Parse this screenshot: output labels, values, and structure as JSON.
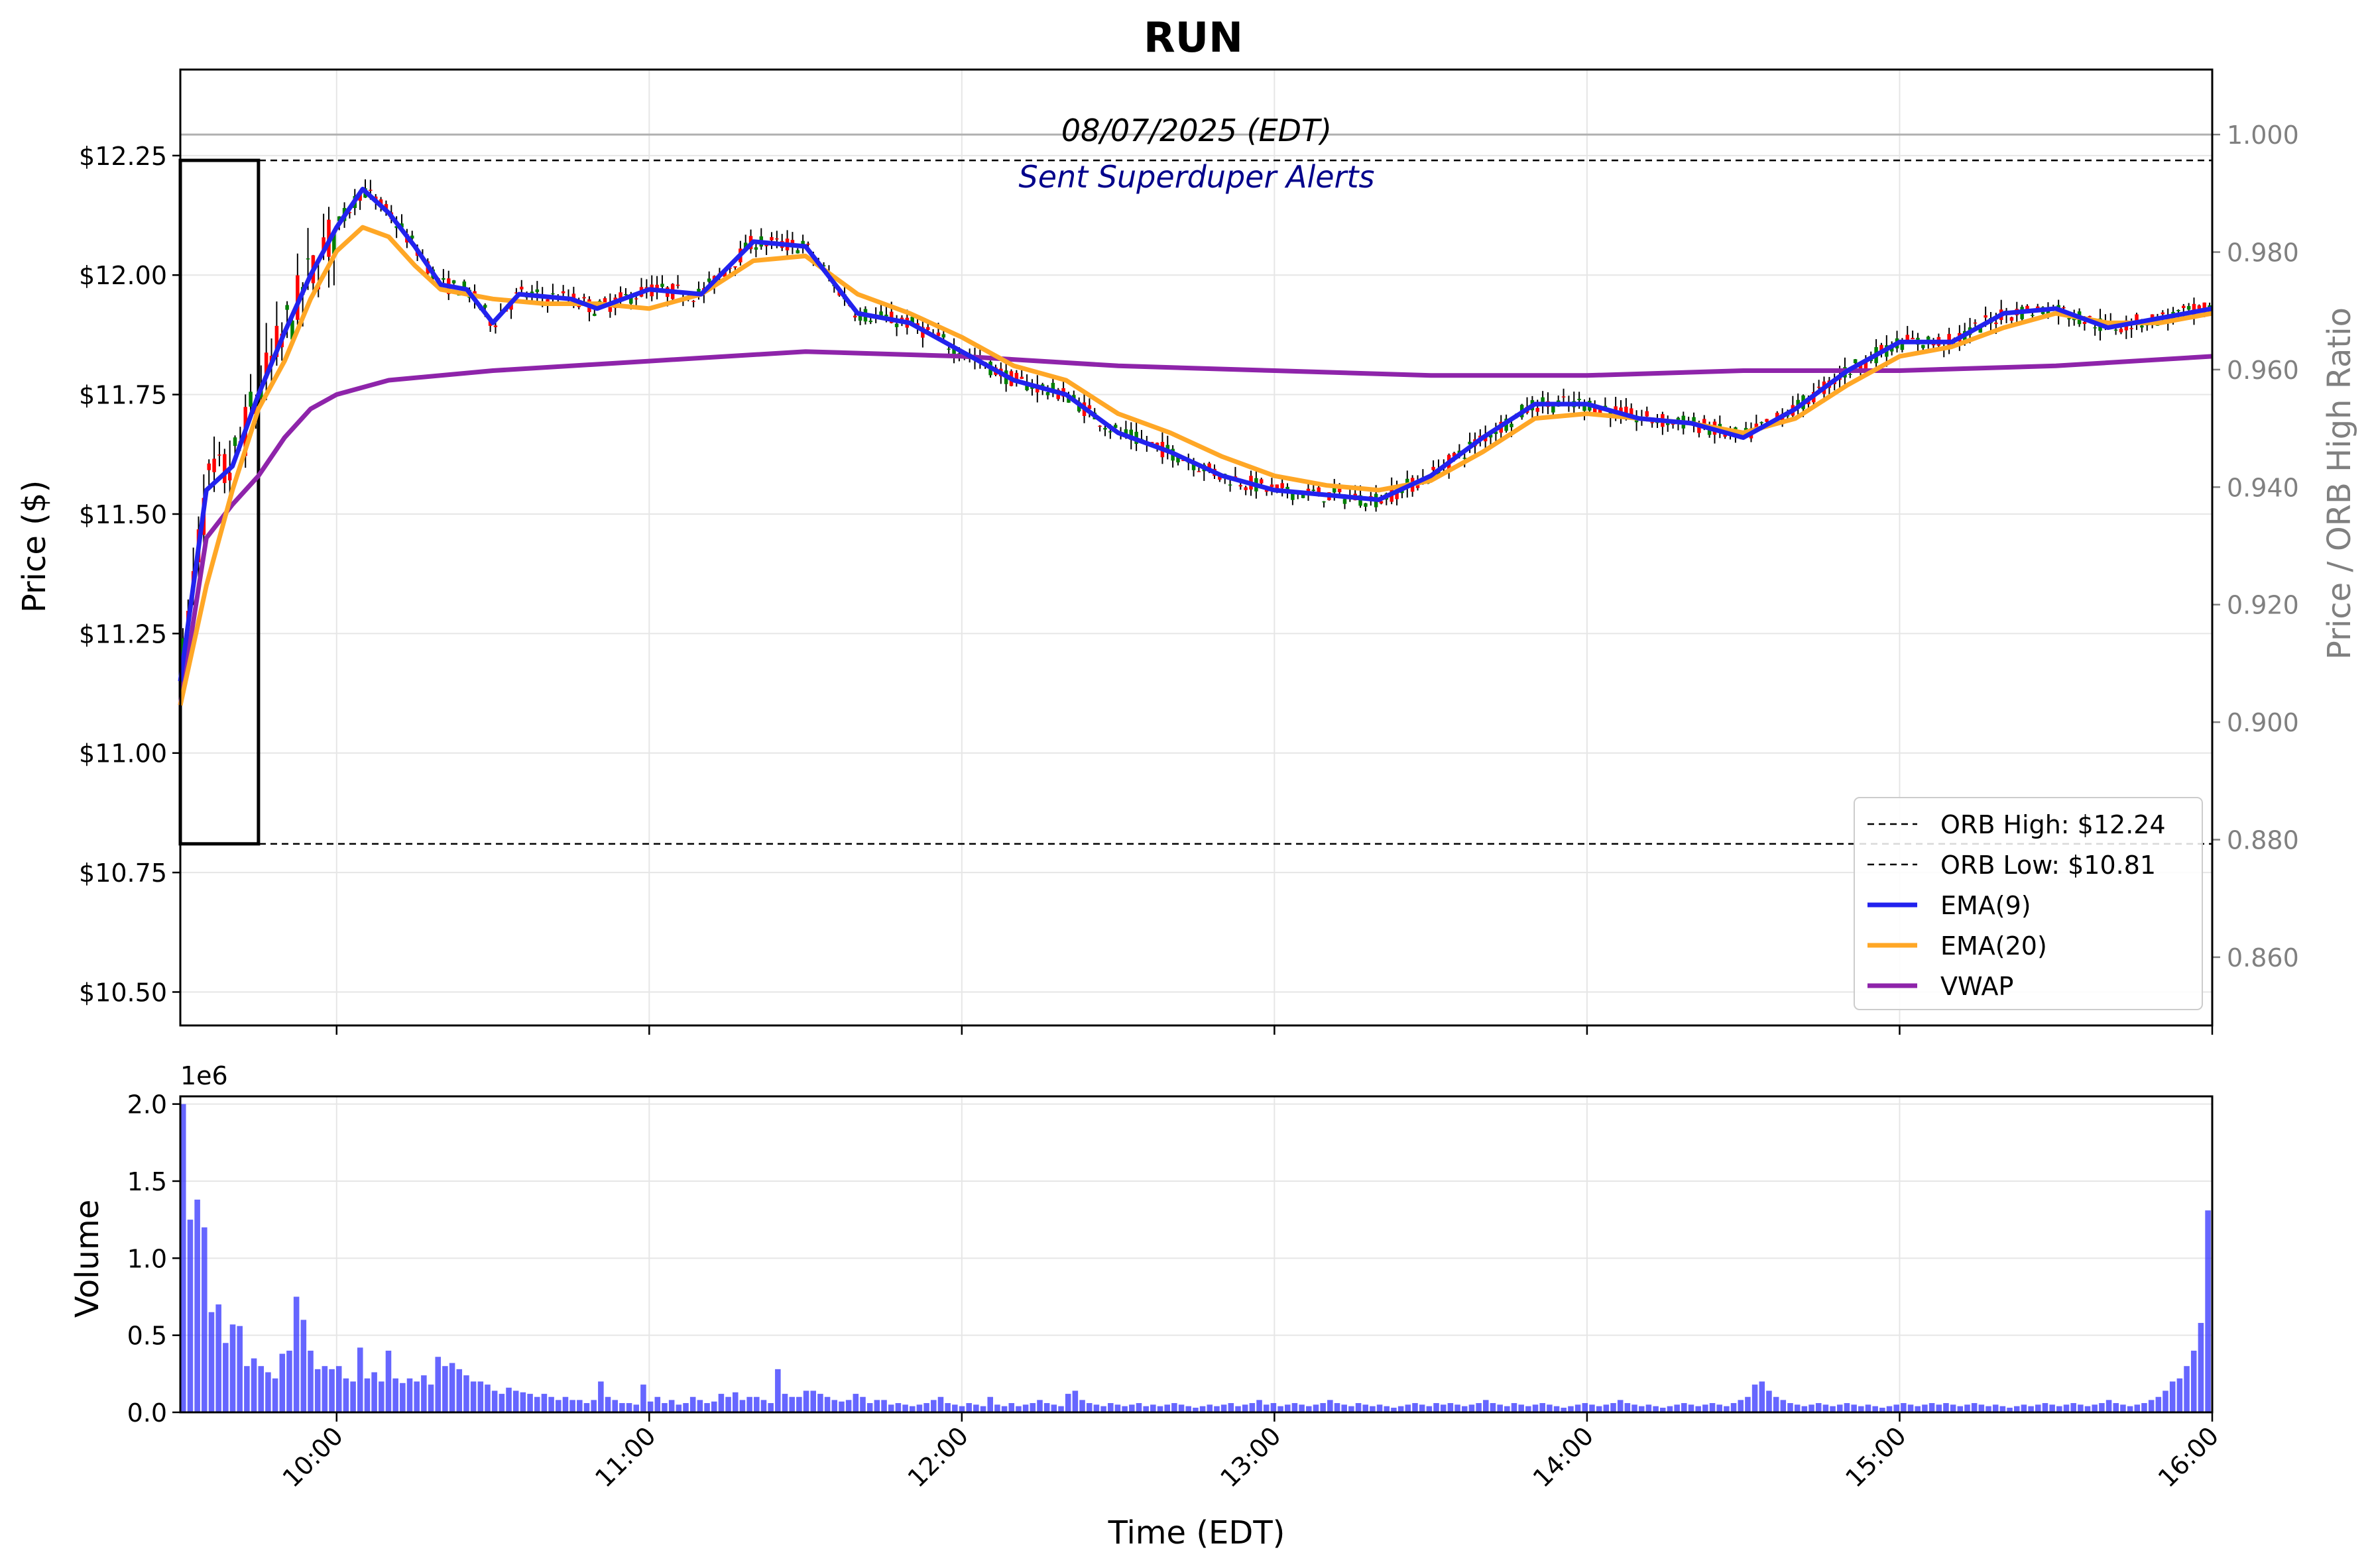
{
  "chart_data": [
    {
      "type": "candlestick",
      "title": "RUN",
      "annotation_date": "08/07/2025 (EDT)",
      "annotation_alerts": "Sent Superduper Alerts",
      "ylabel": "Price ($)",
      "y2label": "Price / ORB High Ratio",
      "ylim": [
        10.43,
        12.43
      ],
      "y_ticks": [
        "$10.50",
        "$10.75",
        "$11.00",
        "$11.25",
        "$11.50",
        "$11.75",
        "$12.00",
        "$12.25"
      ],
      "y_tick_values": [
        10.5,
        10.75,
        11.0,
        11.25,
        11.5,
        11.75,
        12.0,
        12.25
      ],
      "y2_ticks": [
        "0.860",
        "0.880",
        "0.900",
        "0.920",
        "0.940",
        "0.960",
        "0.980",
        "1.000"
      ],
      "y2_tick_values": [
        0.86,
        0.88,
        0.9,
        0.92,
        0.94,
        0.96,
        0.98,
        1.0
      ],
      "x_range": [
        "09:30",
        "16:00"
      ],
      "grid": true,
      "legend_position": "lower-right",
      "legend": [
        {
          "label": "ORB High: $12.24",
          "style": "dashed",
          "color": "#000000"
        },
        {
          "label": "ORB Low: $10.81",
          "style": "dashed",
          "color": "#000000"
        },
        {
          "label": "EMA(9)",
          "style": "solid",
          "color": "#2222ee"
        },
        {
          "label": "EMA(20)",
          "style": "solid",
          "color": "#ffa726"
        },
        {
          "label": "VWAP",
          "style": "solid",
          "color": "#8e24aa"
        }
      ],
      "orb": {
        "high": 12.24,
        "low": 10.81,
        "window": [
          "09:30",
          "09:45"
        ]
      },
      "colors": {
        "up": "#008000",
        "down": "#ff0000",
        "wick": "#000000",
        "ema9": "#2222ee",
        "ema20": "#ffa726",
        "vwap": "#8e24aa",
        "volume": "#3333ff"
      },
      "series": [
        {
          "name": "EMA(9)",
          "points": [
            [
              "09:30",
              11.15
            ],
            [
              "09:35",
              11.55
            ],
            [
              "09:40",
              11.6
            ],
            [
              "09:45",
              11.75
            ],
            [
              "09:50",
              11.88
            ],
            [
              "09:55",
              12.0
            ],
            [
              "10:00",
              12.1
            ],
            [
              "10:05",
              12.18
            ],
            [
              "10:10",
              12.13
            ],
            [
              "10:15",
              12.06
            ],
            [
              "10:20",
              11.98
            ],
            [
              "10:25",
              11.97
            ],
            [
              "10:30",
              11.9
            ],
            [
              "10:35",
              11.96
            ],
            [
              "10:45",
              11.95
            ],
            [
              "10:50",
              11.93
            ],
            [
              "11:00",
              11.97
            ],
            [
              "11:10",
              11.96
            ],
            [
              "11:20",
              12.07
            ],
            [
              "11:30",
              12.06
            ],
            [
              "11:40",
              11.92
            ],
            [
              "11:50",
              11.9
            ],
            [
              "12:00",
              11.84
            ],
            [
              "12:10",
              11.78
            ],
            [
              "12:20",
              11.75
            ],
            [
              "12:30",
              11.67
            ],
            [
              "12:40",
              11.63
            ],
            [
              "12:50",
              11.58
            ],
            [
              "13:00",
              11.55
            ],
            [
              "13:10",
              11.54
            ],
            [
              "13:20",
              11.53
            ],
            [
              "13:30",
              11.58
            ],
            [
              "13:40",
              11.66
            ],
            [
              "13:50",
              11.73
            ],
            [
              "14:00",
              11.73
            ],
            [
              "14:10",
              11.7
            ],
            [
              "14:20",
              11.69
            ],
            [
              "14:30",
              11.66
            ],
            [
              "14:40",
              11.72
            ],
            [
              "14:50",
              11.8
            ],
            [
              "15:00",
              11.86
            ],
            [
              "15:10",
              11.86
            ],
            [
              "15:20",
              11.92
            ],
            [
              "15:30",
              11.93
            ],
            [
              "15:40",
              11.89
            ],
            [
              "15:50",
              11.91
            ],
            [
              "16:00",
              11.93
            ]
          ]
        },
        {
          "name": "EMA(20)",
          "points": [
            [
              "09:30",
              11.1
            ]
          ]
        },
        {
          "name": "VWAP",
          "points": [
            [
              "09:30",
              11.1
            ]
          ]
        }
      ]
    },
    {
      "type": "bar",
      "ylabel": "Volume",
      "xlabel": "Time (EDT)",
      "y_offset_label": "1e6",
      "ylim": [
        0,
        2.05
      ],
      "y_ticks": [
        "0.0",
        "0.5",
        "1.0",
        "1.5",
        "2.0"
      ],
      "y_tick_values": [
        0,
        0.5,
        1.0,
        1.5,
        2.0
      ],
      "x_ticks": [
        "10:00",
        "11:00",
        "12:00",
        "13:00",
        "14:00",
        "15:00",
        "16:00"
      ],
      "grid": true,
      "bar_color": "#3333ff",
      "values_millions": [
        2.0,
        1.25,
        1.38,
        1.2,
        0.65,
        0.7,
        0.45,
        0.57,
        0.56,
        0.3,
        0.35,
        0.3,
        0.26,
        0.22,
        0.38,
        0.4,
        0.75,
        0.6,
        0.4,
        0.28,
        0.3,
        0.28,
        0.3,
        0.22,
        0.2,
        0.42,
        0.22,
        0.26,
        0.2,
        0.4,
        0.22,
        0.19,
        0.22,
        0.2,
        0.24,
        0.18,
        0.36,
        0.3,
        0.32,
        0.28,
        0.24,
        0.2,
        0.2,
        0.18,
        0.14,
        0.12,
        0.16,
        0.14,
        0.13,
        0.12,
        0.1,
        0.12,
        0.1,
        0.08,
        0.1,
        0.08,
        0.08,
        0.06,
        0.08,
        0.2,
        0.1,
        0.08,
        0.06,
        0.06,
        0.05,
        0.18,
        0.07,
        0.1,
        0.06,
        0.08,
        0.05,
        0.06,
        0.1,
        0.08,
        0.06,
        0.07,
        0.12,
        0.1,
        0.13,
        0.08,
        0.1,
        0.1,
        0.08,
        0.06,
        0.28,
        0.12,
        0.1,
        0.1,
        0.14,
        0.14,
        0.12,
        0.1,
        0.08,
        0.07,
        0.08,
        0.12,
        0.1,
        0.06,
        0.08,
        0.08,
        0.05,
        0.06,
        0.05,
        0.04,
        0.05,
        0.06,
        0.08,
        0.1,
        0.06,
        0.05,
        0.04,
        0.06,
        0.05,
        0.04,
        0.1,
        0.05,
        0.04,
        0.06,
        0.04,
        0.05,
        0.06,
        0.08,
        0.06,
        0.05,
        0.04,
        0.12,
        0.14,
        0.08,
        0.06,
        0.05,
        0.04,
        0.06,
        0.05,
        0.04,
        0.05,
        0.06,
        0.04,
        0.05,
        0.04,
        0.05,
        0.06,
        0.05,
        0.04,
        0.03,
        0.04,
        0.05,
        0.04,
        0.05,
        0.06,
        0.04,
        0.05,
        0.06,
        0.08,
        0.05,
        0.06,
        0.04,
        0.05,
        0.06,
        0.05,
        0.04,
        0.05,
        0.06,
        0.08,
        0.06,
        0.05,
        0.04,
        0.06,
        0.05,
        0.04,
        0.05,
        0.04,
        0.03,
        0.04,
        0.05,
        0.06,
        0.05,
        0.04,
        0.06,
        0.05,
        0.06,
        0.05,
        0.04,
        0.05,
        0.06,
        0.08,
        0.06,
        0.05,
        0.04,
        0.06,
        0.05,
        0.04,
        0.05,
        0.06,
        0.05,
        0.04,
        0.03,
        0.04,
        0.05,
        0.06,
        0.05,
        0.04,
        0.05,
        0.06,
        0.08,
        0.06,
        0.05,
        0.04,
        0.05,
        0.04,
        0.03,
        0.04,
        0.05,
        0.06,
        0.05,
        0.04,
        0.05,
        0.06,
        0.05,
        0.04,
        0.06,
        0.08,
        0.1,
        0.18,
        0.2,
        0.14,
        0.1,
        0.08,
        0.06,
        0.05,
        0.04,
        0.05,
        0.06,
        0.05,
        0.04,
        0.05,
        0.06,
        0.05,
        0.04,
        0.05,
        0.04,
        0.03,
        0.04,
        0.05,
        0.06,
        0.05,
        0.04,
        0.05,
        0.06,
        0.05,
        0.06,
        0.05,
        0.04,
        0.05,
        0.06,
        0.05,
        0.04,
        0.05,
        0.04,
        0.03,
        0.04,
        0.05,
        0.04,
        0.05,
        0.06,
        0.05,
        0.04,
        0.05,
        0.06,
        0.05,
        0.04,
        0.05,
        0.06,
        0.08,
        0.06,
        0.05,
        0.04,
        0.05,
        0.06,
        0.08,
        0.1,
        0.14,
        0.2,
        0.22,
        0.3,
        0.4,
        0.58,
        1.31
      ]
    }
  ]
}
